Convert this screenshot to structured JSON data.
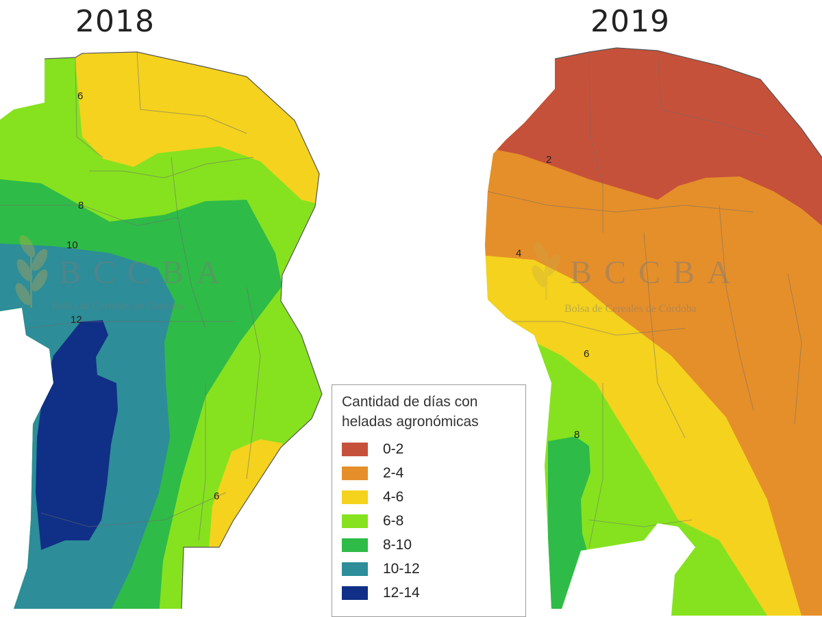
{
  "maps": [
    {
      "year": "2018",
      "isolines": [
        "6",
        "8",
        "10",
        "12",
        "6"
      ]
    },
    {
      "year": "2019",
      "isolines": [
        "2",
        "4",
        "6",
        "8"
      ]
    }
  ],
  "watermark": {
    "logo": "BCCBA",
    "subtitle": "Bolsa de Cereales de Córdoba"
  },
  "legend": {
    "title_line1": "Cantidad de días con",
    "title_line2": "heladas agronómicas",
    "items": [
      {
        "label": "0-2",
        "color": "#c6513a"
      },
      {
        "label": "2-4",
        "color": "#e58f2a"
      },
      {
        "label": "4-6",
        "color": "#f4d21e"
      },
      {
        "label": "6-8",
        "color": "#86e21f"
      },
      {
        "label": "8-10",
        "color": "#2fbb48"
      },
      {
        "label": "10-12",
        "color": "#2d8d98"
      },
      {
        "label": "12-14",
        "color": "#102f86"
      }
    ]
  }
}
